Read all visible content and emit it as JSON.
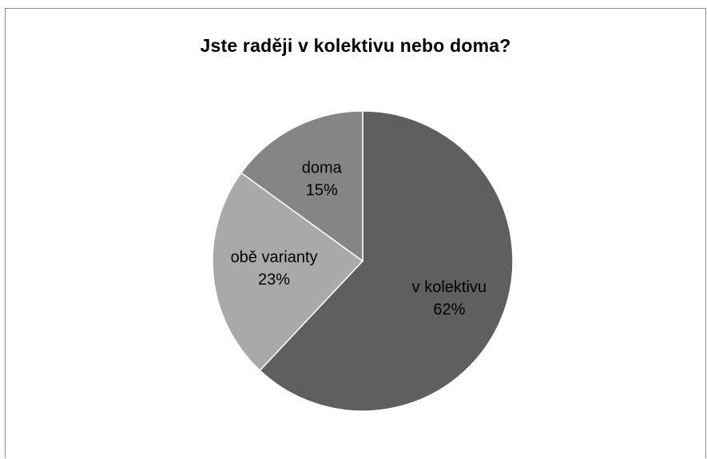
{
  "chart_data": {
    "type": "pie",
    "title": "Jste raději v kolektivu nebo doma?",
    "slices": [
      {
        "label": "v kolektivu",
        "value": 62,
        "value_label": "62%",
        "color": "#5f5f5f"
      },
      {
        "label": "obě varianty",
        "value": 23,
        "value_label": "23%",
        "color": "#a9a9a9"
      },
      {
        "label": "doma",
        "value": 15,
        "value_label": "15%",
        "color": "#858585"
      }
    ],
    "start": "12 o'clock",
    "direction": "clockwise",
    "slice_border_color": "#ffffff",
    "legend": "none"
  }
}
